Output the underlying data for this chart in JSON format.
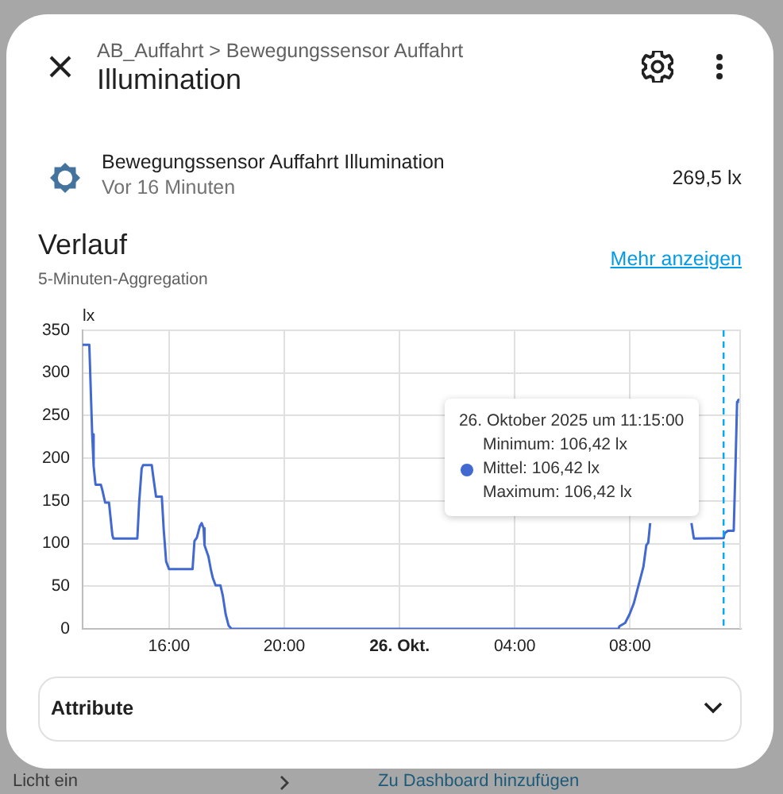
{
  "chart_data": {
    "type": "line",
    "title": "Verlauf",
    "subtitle": "5-Minuten-Aggregation",
    "ylabel": "lx",
    "x": [
      "2025-10-25T13:00",
      "2025-10-25T13:14",
      "2025-10-25T13:20",
      "2025-10-25T13:23",
      "2025-10-25T13:27",
      "2025-10-25T13:38",
      "2025-10-25T13:41",
      "2025-10-25T13:47",
      "2025-10-25T13:55",
      "2025-10-25T14:02",
      "2025-10-25T14:04",
      "2025-10-25T14:54",
      "2025-10-25T14:58",
      "2025-10-25T15:03",
      "2025-10-25T15:06",
      "2025-10-25T15:24",
      "2025-10-25T15:28",
      "2025-10-25T15:33",
      "2025-10-25T15:45",
      "2025-10-25T15:49",
      "2025-10-25T15:54",
      "2025-10-25T16:00",
      "2025-10-25T16:49",
      "2025-10-25T16:53",
      "2025-10-25T16:58",
      "2025-10-25T17:04",
      "2025-10-25T17:08",
      "2025-10-25T17:12",
      "2025-10-25T17:14",
      "2025-10-25T17:22",
      "2025-10-25T17:27",
      "2025-10-25T17:31",
      "2025-10-25T17:37",
      "2025-10-25T17:47",
      "2025-10-25T17:52",
      "2025-10-25T17:58",
      "2025-10-25T18:04",
      "2025-10-25T18:10",
      "2025-10-26T07:36",
      "2025-10-26T07:38",
      "2025-10-26T07:50",
      "2025-10-26T07:59",
      "2025-10-26T08:08",
      "2025-10-26T08:15",
      "2025-10-26T08:22",
      "2025-10-26T08:28",
      "2025-10-26T08:34",
      "2025-10-26T08:38",
      "2025-10-26T08:42",
      "2025-10-26T09:24",
      "2025-10-26T10:08",
      "2025-10-26T10:13",
      "2025-10-26T11:15",
      "2025-10-26T11:17",
      "2025-10-26T11:24",
      "2025-10-26T11:36",
      "2025-10-26T11:40",
      "2025-10-26T11:43",
      "2025-10-26T11:45",
      "2025-10-26T11:51"
    ],
    "series": [
      {
        "color": "#4269d0",
        "values": [
          333,
          333,
          228,
          191,
          169,
          169,
          163,
          148,
          148,
          110,
          106,
          106,
          150,
          188,
          192,
          192,
          175,
          155,
          155,
          116,
          79,
          70,
          70,
          103,
          107,
          120,
          124,
          118,
          98,
          85,
          70,
          60,
          51,
          51,
          39,
          17,
          4,
          0,
          0,
          3,
          7,
          17,
          30,
          45,
          60,
          73,
          98,
          101,
          124,
          null,
          124,
          106,
          106.42,
          112,
          115,
          115,
          197,
          266,
          268,
          269.5
        ]
      }
    ],
    "xlim": [
      "2025-10-25T13:00",
      "2025-10-26T11:51"
    ],
    "xticks": [
      {
        "value": "2025-10-25T16:00",
        "label": "16:00"
      },
      {
        "value": "2025-10-25T20:00",
        "label": "20:00"
      },
      {
        "value": "2025-10-26T00:00",
        "label": "26. Okt."
      },
      {
        "value": "2025-10-26T04:00",
        "label": "04:00"
      },
      {
        "value": "2025-10-26T08:00",
        "label": "08:00"
      }
    ],
    "ylim": [
      0,
      350
    ],
    "yticks": [
      0,
      50,
      100,
      150,
      200,
      250,
      300,
      350
    ],
    "grid": true,
    "ref_lines": [
      {
        "axis": "x",
        "value": "2025-10-26T11:15",
        "color": "#03a9f4",
        "line_style": "dashed"
      }
    ],
    "annotations": [
      "AB_Auffahrt > Bewegungssensor Auffahrt",
      "Illumination",
      "Bewegungssensor Auffahrt Illumination",
      "Vor 16 Minuten",
      "269,5 lx",
      "Mehr anzeigen",
      "Attribute",
      "Licht ein",
      "Zu Dashboard hinzufügen",
      "26. Oktober 2025 um 11:15:00",
      "Minimum: 106,42 lx",
      "Mittel: 106,42 lx",
      "Maximum: 106,42 lx"
    ]
  }
}
